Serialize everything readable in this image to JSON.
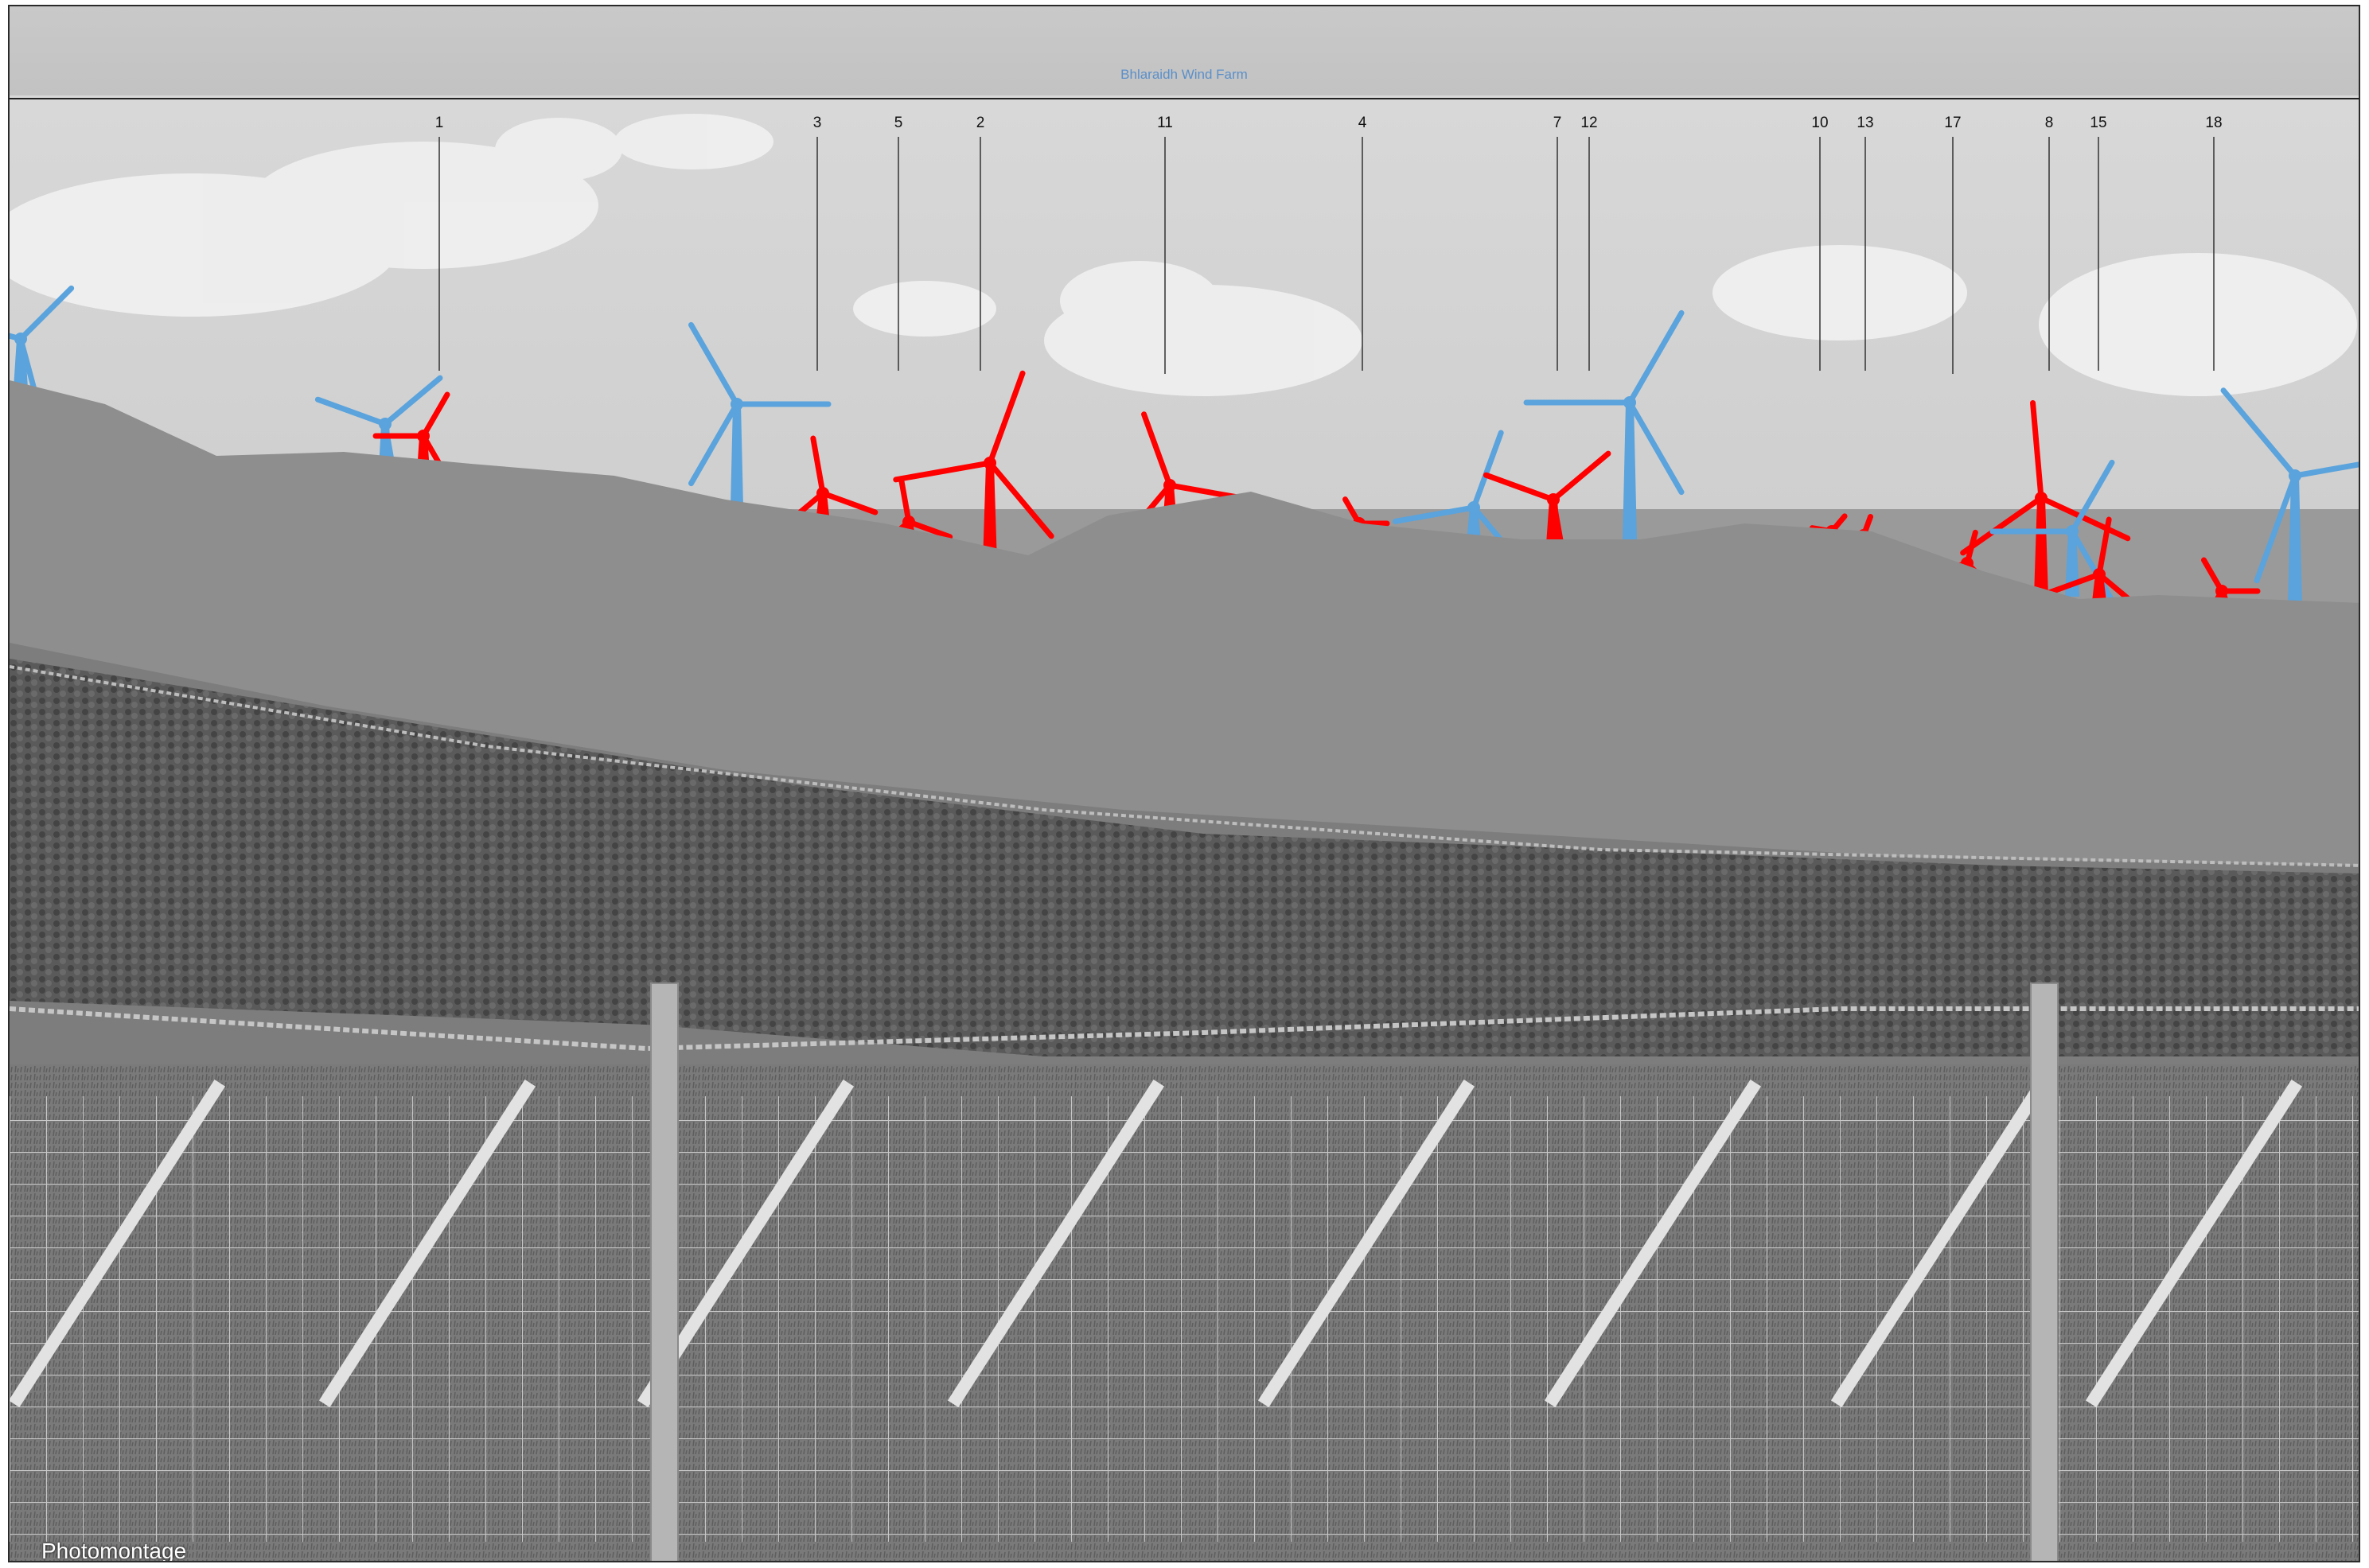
{
  "title": "Bhlaraidh Wind Farm",
  "caption": "Photomontage",
  "colors": {
    "existing_turbine": "#5aa3dc",
    "proposed_turbine": "#ff0000",
    "title_text": "#5b8fc9"
  },
  "turbine_markers": [
    "1",
    "3",
    "5",
    "2",
    "11",
    "4",
    "7",
    "12",
    "10",
    "13",
    "17",
    "8",
    "15",
    "18"
  ]
}
